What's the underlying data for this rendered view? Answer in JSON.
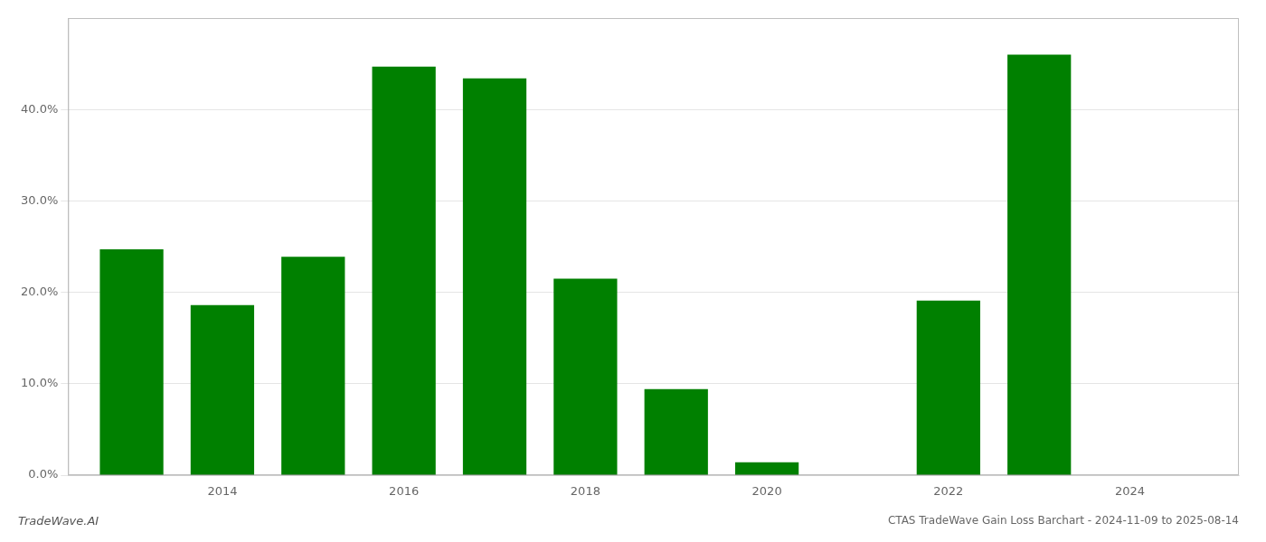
{
  "chart_data": {
    "type": "bar",
    "title": "CTAS TradeWave Gain Loss Barchart - 2024-11-09 to 2025-08-14",
    "annotations": [
      "TradeWave.AI"
    ],
    "x": [
      2013,
      2014,
      2015,
      2016,
      2017,
      2018,
      2019,
      2020,
      2021,
      2022,
      2023
    ],
    "values": [
      0.247,
      0.186,
      0.239,
      0.447,
      0.434,
      0.215,
      0.094,
      0.014,
      0.0,
      0.191,
      0.46
    ],
    "color": "#008000",
    "xlim": [
      2012.3,
      2025.2
    ],
    "xticks": [
      2014,
      2016,
      2018,
      2020,
      2022,
      2024
    ],
    "ylim": [
      0.0,
      0.5
    ],
    "yticks": [
      {
        "value": 0.0,
        "label": "0.0%"
      },
      {
        "value": 0.1,
        "label": "10.0%"
      },
      {
        "value": 0.2,
        "label": "20.0%"
      },
      {
        "value": 0.3,
        "label": "30.0%"
      },
      {
        "value": 0.4,
        "label": "40.0%"
      }
    ],
    "grid": true
  }
}
